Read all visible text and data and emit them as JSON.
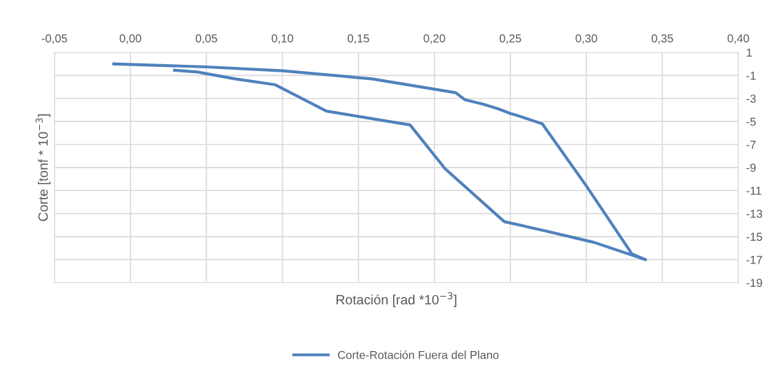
{
  "chart_data": {
    "type": "line",
    "xlabel": "Rotación [rad *10$^{−3}$]",
    "ylabel": "Corte [tonf * 10$^{−3}$]",
    "series": [
      {
        "name": "Corte-Rotación Fuera del Plano",
        "color": "#4f81bd",
        "x": [
          -0.011,
          0.05,
          0.1,
          0.159,
          0.214,
          0.22,
          0.232,
          0.242,
          0.25,
          0.255,
          0.271,
          0.3,
          0.33,
          0.339,
          0.305,
          0.273,
          0.246,
          0.207,
          0.184,
          0.129,
          0.095,
          0.069,
          0.044,
          0.029
        ],
        "values": [
          0,
          -0.26,
          -0.6,
          -1.3,
          -2.5,
          -3.1,
          -3.5,
          -3.9,
          -4.3,
          -4.5,
          -5.2,
          -10.6,
          -16.5,
          -17.0,
          -15.5,
          -14.5,
          -13.7,
          -9.1,
          -5.3,
          -4.1,
          -1.8,
          -1.3,
          -0.7,
          -0.55
        ]
      }
    ],
    "xlim": [
      -0.05,
      0.4
    ],
    "xticks": [
      {
        "value": -0.05,
        "label": "-0,05"
      },
      {
        "value": 0,
        "label": "0,00"
      },
      {
        "value": 0.05,
        "label": "0,05"
      },
      {
        "value": 0.1,
        "label": "0,10"
      },
      {
        "value": 0.15,
        "label": "0,15"
      },
      {
        "value": 0.2,
        "label": "0,20"
      },
      {
        "value": 0.25,
        "label": "0,25"
      },
      {
        "value": 0.3,
        "label": "0,30"
      },
      {
        "value": 0.35,
        "label": "0,35"
      },
      {
        "value": 0.4,
        "label": "0,40"
      }
    ],
    "ylim": [
      -19,
      1
    ],
    "yticks": [
      1,
      -1,
      -3,
      -5,
      -7,
      -9,
      -11,
      -13,
      -15,
      -17,
      -19
    ],
    "grid": true,
    "legend": "bottom",
    "marker": "none",
    "line_style": "solid"
  }
}
